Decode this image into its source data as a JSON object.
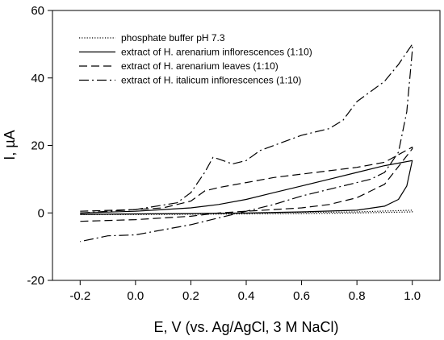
{
  "chart_data": {
    "type": "line",
    "title": "",
    "xlabel": "E, V (vs. Ag/AgCl, 3 M NaCl)",
    "ylabel": "I, µA",
    "xlim": [
      -0.3,
      1.1
    ],
    "ylim": [
      -20,
      60
    ],
    "xticks": [
      "-0.2",
      "0.0",
      "0.2",
      "0.4",
      "0.6",
      "0.8",
      "1.0"
    ],
    "yticks": [
      "-20",
      "0",
      "20",
      "40",
      "60"
    ],
    "grid": false,
    "legend_position": "top-left",
    "series": [
      {
        "name": "phosphate buffer pH 7.3",
        "style": "dotted",
        "x": [
          -0.2,
          0.0,
          0.2,
          0.4,
          0.6,
          0.8,
          1.0,
          1.0,
          0.8,
          0.6,
          0.4,
          0.2,
          0.0,
          -0.2
        ],
        "y": [
          -0.5,
          -0.3,
          -0.2,
          -0.1,
          0.1,
          0.3,
          0.8,
          0.3,
          0.0,
          -0.2,
          -0.3,
          -0.4,
          -0.5,
          -0.5
        ]
      },
      {
        "name": "extract of H. arenarium inflorescences (1:10)",
        "style": "solid",
        "x": [
          -0.2,
          0.0,
          0.1,
          0.2,
          0.3,
          0.4,
          0.5,
          0.6,
          0.7,
          0.8,
          0.9,
          1.0,
          1.0,
          0.98,
          0.95,
          0.9,
          0.8,
          0.6,
          0.4,
          0.2,
          0.0,
          -0.2
        ],
        "y": [
          0.0,
          0.5,
          1.0,
          1.5,
          2.5,
          4.0,
          6.0,
          8.0,
          10.0,
          12.0,
          14.0,
          15.5,
          15.5,
          8.0,
          4.0,
          2.0,
          0.8,
          0.3,
          0.0,
          -0.2,
          -0.3,
          -0.4
        ]
      },
      {
        "name": "extract of H. arenarium leaves (1:10)",
        "style": "dashed",
        "x": [
          -0.2,
          0.0,
          0.1,
          0.2,
          0.25,
          0.3,
          0.4,
          0.5,
          0.6,
          0.7,
          0.8,
          0.9,
          1.0,
          1.0,
          0.9,
          0.8,
          0.7,
          0.6,
          0.4,
          0.3,
          0.2,
          0.0,
          -0.2
        ],
        "y": [
          0.5,
          1.0,
          1.5,
          3.5,
          6.5,
          7.5,
          9.0,
          10.5,
          11.5,
          12.5,
          13.5,
          15.0,
          19.5,
          19.0,
          8.5,
          4.5,
          2.5,
          1.5,
          0.5,
          0.0,
          -1.0,
          -2.0,
          -2.5
        ]
      },
      {
        "name": "extract of H. italicum  inflorescences (1:10)",
        "style": "dashdot",
        "x": [
          -0.2,
          0.0,
          0.15,
          0.2,
          0.25,
          0.28,
          0.3,
          0.35,
          0.4,
          0.45,
          0.5,
          0.6,
          0.7,
          0.75,
          0.8,
          0.85,
          0.9,
          0.95,
          1.0,
          1.0,
          0.98,
          0.95,
          0.9,
          0.85,
          0.8,
          0.7,
          0.6,
          0.5,
          0.4,
          0.3,
          0.2,
          0.1,
          0.0,
          -0.1,
          -0.2
        ],
        "y": [
          0.0,
          1.0,
          3.0,
          6.0,
          12.0,
          16.5,
          16.0,
          14.5,
          15.5,
          18.5,
          20.0,
          23.0,
          25.0,
          27.5,
          33.0,
          36.0,
          39.0,
          44.0,
          50.0,
          48.0,
          30.0,
          18.0,
          12.0,
          10.0,
          9.0,
          7.0,
          5.0,
          2.5,
          0.5,
          -1.5,
          -3.5,
          -5.0,
          -6.5,
          -6.8,
          -8.5
        ]
      }
    ]
  }
}
